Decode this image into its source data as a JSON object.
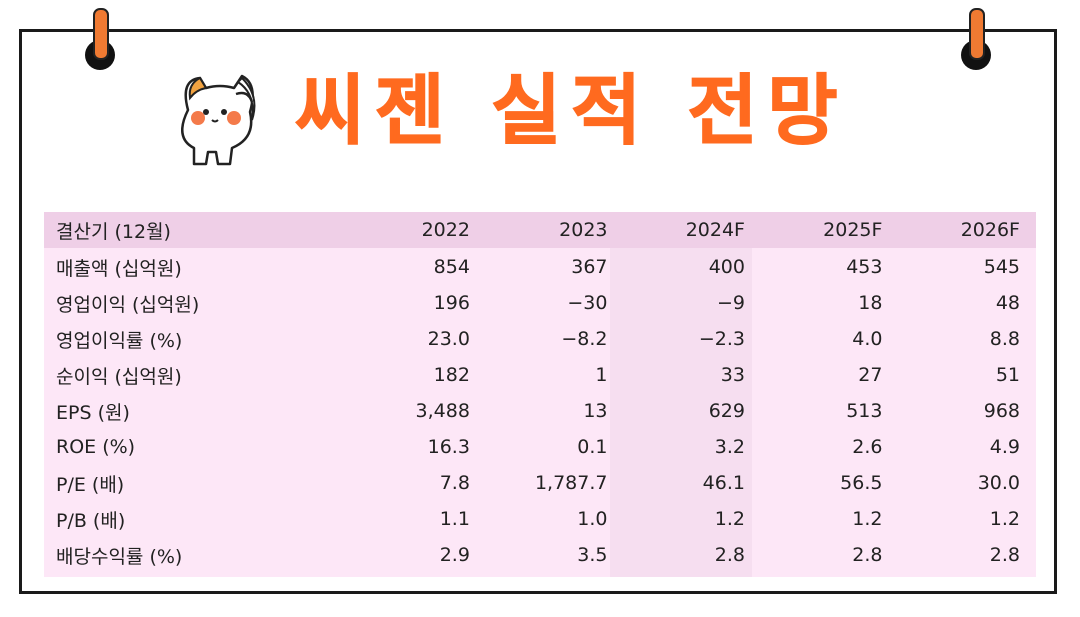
{
  "title": "씨젠 실적 전망",
  "table": {
    "header": [
      "결산기 (12월)",
      "2022",
      "2023",
      "2024F",
      "2025F",
      "2026F"
    ],
    "rows": [
      {
        "label": "매출액 (십억원)",
        "values": [
          "854",
          "367",
          "400",
          "453",
          "545"
        ]
      },
      {
        "label": "영업이익 (십억원)",
        "values": [
          "196",
          "−30",
          "−9",
          "18",
          "48"
        ]
      },
      {
        "label": "영업이익률 (%)",
        "values": [
          "23.0",
          "−8.2",
          "−2.3",
          "4.0",
          "8.8"
        ]
      },
      {
        "label": "순이익 (십억원)",
        "values": [
          "182",
          "1",
          "33",
          "27",
          "51"
        ]
      },
      {
        "label": "EPS (원)",
        "values": [
          "3,488",
          "13",
          "629",
          "513",
          "968"
        ]
      },
      {
        "label": "ROE (%)",
        "values": [
          "16.3",
          "0.1",
          "3.2",
          "2.6",
          "4.9"
        ]
      },
      {
        "label": "P/E (배)",
        "values": [
          "7.8",
          "1,787.7",
          "46.1",
          "56.5",
          "30.0"
        ]
      },
      {
        "label": "P/B (배)",
        "values": [
          "1.1",
          "1.0",
          "1.2",
          "1.2",
          "1.2"
        ]
      },
      {
        "label": "배당수익률 (%)",
        "values": [
          "2.9",
          "3.5",
          "2.8",
          "2.8",
          "2.8"
        ]
      }
    ]
  },
  "colors": {
    "title": "#ff6a1f",
    "table_bg": "#fde7f7",
    "header_bg": "#efcfe7",
    "frame": "#1a1a1a"
  },
  "icons": [
    "cat-mascot-icon",
    "binder-ring-icon"
  ]
}
